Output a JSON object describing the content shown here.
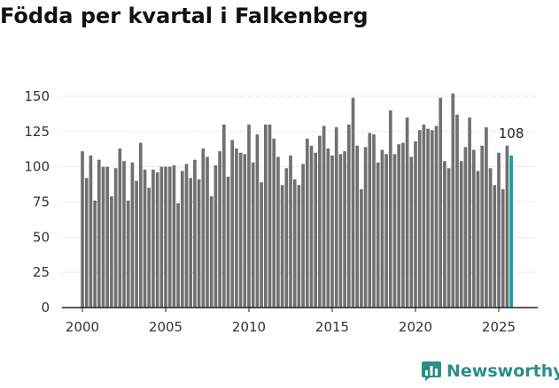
{
  "colors": {
    "bar": "#707070",
    "highlight": "#1a9c9c",
    "axis": "#222222",
    "brand": "#2a8f86"
  },
  "chart_data": {
    "type": "bar",
    "title": "Födda per kvartal i Falkenberg",
    "xlabel": "",
    "ylabel": "",
    "ylim": [
      0,
      160
    ],
    "yticks": [
      0,
      25,
      50,
      75,
      100,
      125,
      150
    ],
    "xticks": [
      2000,
      2005,
      2010,
      2015,
      2020,
      2025
    ],
    "x_start": 2000,
    "x_step": 0.25,
    "values": [
      111,
      92,
      108,
      76,
      105,
      100,
      100,
      79,
      99,
      113,
      104,
      76,
      103,
      90,
      117,
      98,
      85,
      98,
      96,
      100,
      100,
      100,
      101,
      74,
      97,
      102,
      92,
      105,
      91,
      113,
      107,
      79,
      101,
      111,
      130,
      93,
      119,
      113,
      110,
      109,
      130,
      103,
      123,
      89,
      130,
      130,
      120,
      107,
      87,
      99,
      108,
      91,
      87,
      102,
      120,
      115,
      110,
      122,
      129,
      113,
      108,
      128,
      109,
      111,
      130,
      149,
      115,
      84,
      114,
      124,
      123,
      103,
      112,
      109,
      140,
      109,
      116,
      117,
      135,
      107,
      118,
      126,
      130,
      127,
      126,
      129,
      149,
      104,
      99,
      152,
      137,
      104,
      114,
      135,
      112,
      97,
      115,
      128,
      99,
      87,
      110,
      84,
      115,
      108
    ],
    "highlight_index": 103,
    "last_value_label": "108"
  },
  "footer": {
    "brand": "Newsworthy",
    "logo_icon": "bar-chart-speech-bubble-icon"
  }
}
